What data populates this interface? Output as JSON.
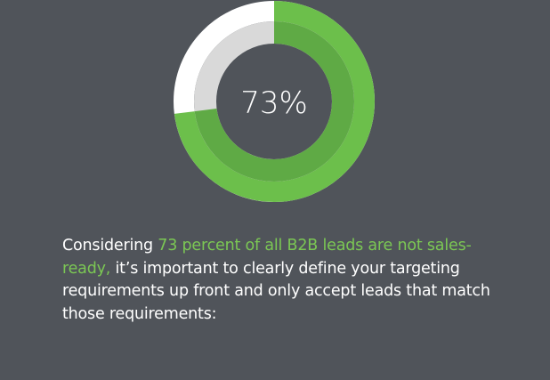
{
  "chart_data": {
    "type": "pie",
    "categories": [
      "not sales-ready",
      "sales-ready"
    ],
    "values": [
      73,
      27
    ],
    "center_label": "73%"
  },
  "colors": {
    "background": "#50545a",
    "outer_percent": "#6cbf4b",
    "outer_rest": "#ffffff",
    "inner_percent": "#5faa45",
    "inner_rest": "#d9d9d9",
    "highlight_text": "#7bc754",
    "body_text": "#ffffff"
  },
  "caption": {
    "lead": "Considering ",
    "highlight": "73 percent of all B2B leads are not sales-ready,",
    "rest": " it’s important to clearly define your targeting requirements up front and only accept leads that match those requirements:"
  }
}
